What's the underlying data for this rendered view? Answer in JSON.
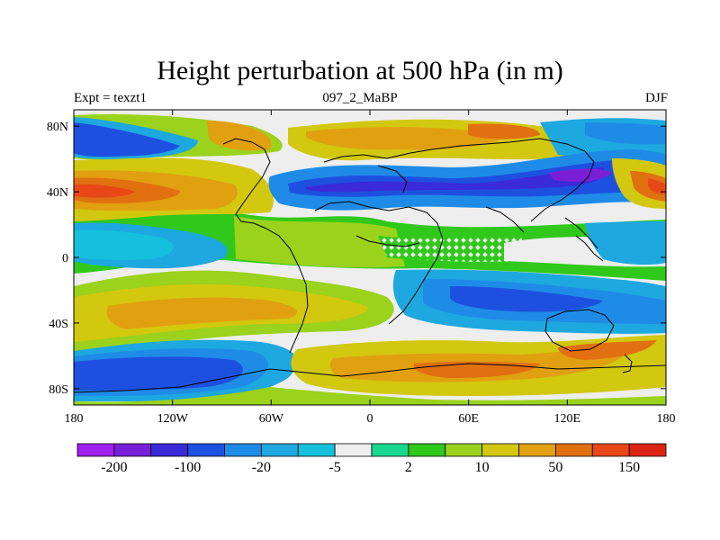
{
  "map": {
    "title": "Height perturbation at 500 hPa (in m)",
    "left_label": "Expt = texzt1",
    "center_label": "097_2_MaBP",
    "right_label": "DJF",
    "lon_ticks": [
      "180",
      "120W",
      "60W",
      "0",
      "60E",
      "120E",
      "180"
    ],
    "lat_ticks": [
      "80N",
      "40N",
      "0",
      "40S",
      "80S"
    ]
  },
  "colorbar": {
    "colors": [
      "#a020f0",
      "#7a1fd8",
      "#3a2ad8",
      "#1e50e0",
      "#1e8ce6",
      "#1ea8e0",
      "#14c0dc",
      "#eeeeee",
      "#18d890",
      "#30c81a",
      "#9ad21c",
      "#d2c810",
      "#e0a010",
      "#e07010",
      "#e84818",
      "#dc2414"
    ],
    "labels": [
      "-200",
      "-100",
      "-20",
      "-5",
      "2",
      "10",
      "50",
      "150"
    ]
  },
  "chart_data": {
    "type": "heatmap",
    "title": "Height perturbation at 500 hPa (in m)",
    "variable": "500 hPa geopotential height perturbation (m)",
    "experiment": "texzt1",
    "case": "097_2_MaBP",
    "season": "DJF",
    "x_axis": {
      "ticks": [
        "180",
        "120W",
        "60W",
        "0",
        "60E",
        "120E",
        "180"
      ],
      "range_deg": [
        -180,
        180
      ]
    },
    "y_axis": {
      "ticks": [
        "80N",
        "40N",
        "0",
        "40S",
        "80S"
      ],
      "range_deg": [
        -90,
        90
      ]
    },
    "levels": [
      -200,
      -100,
      -20,
      -5,
      2,
      10,
      50,
      150
    ],
    "level_labels": [
      "-200",
      "-100",
      "-20",
      "-5",
      "2",
      "10",
      "50",
      "150"
    ],
    "palette": [
      "#a020f0",
      "#7a1fd8",
      "#3a2ad8",
      "#1e50e0",
      "#1e8ce6",
      "#1ea8e0",
      "#14c0dc",
      "#eeeeee",
      "#18d890",
      "#30c81a",
      "#9ad21c",
      "#d2c810",
      "#e0a010",
      "#e07010",
      "#e84818",
      "#dc2414"
    ]
  }
}
